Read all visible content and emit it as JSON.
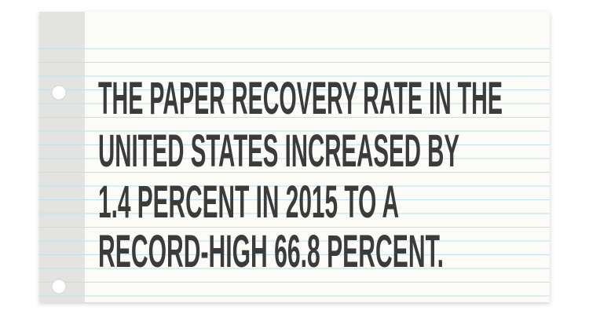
{
  "card": {
    "lines": [
      "THE PAPER RECOVERY RATE IN THE",
      "UNITED STATES INCREASED BY",
      "1.4 PERCENT IN 2015 TO A",
      "RECORD-HIGH 66.8 PERCENT."
    ]
  }
}
